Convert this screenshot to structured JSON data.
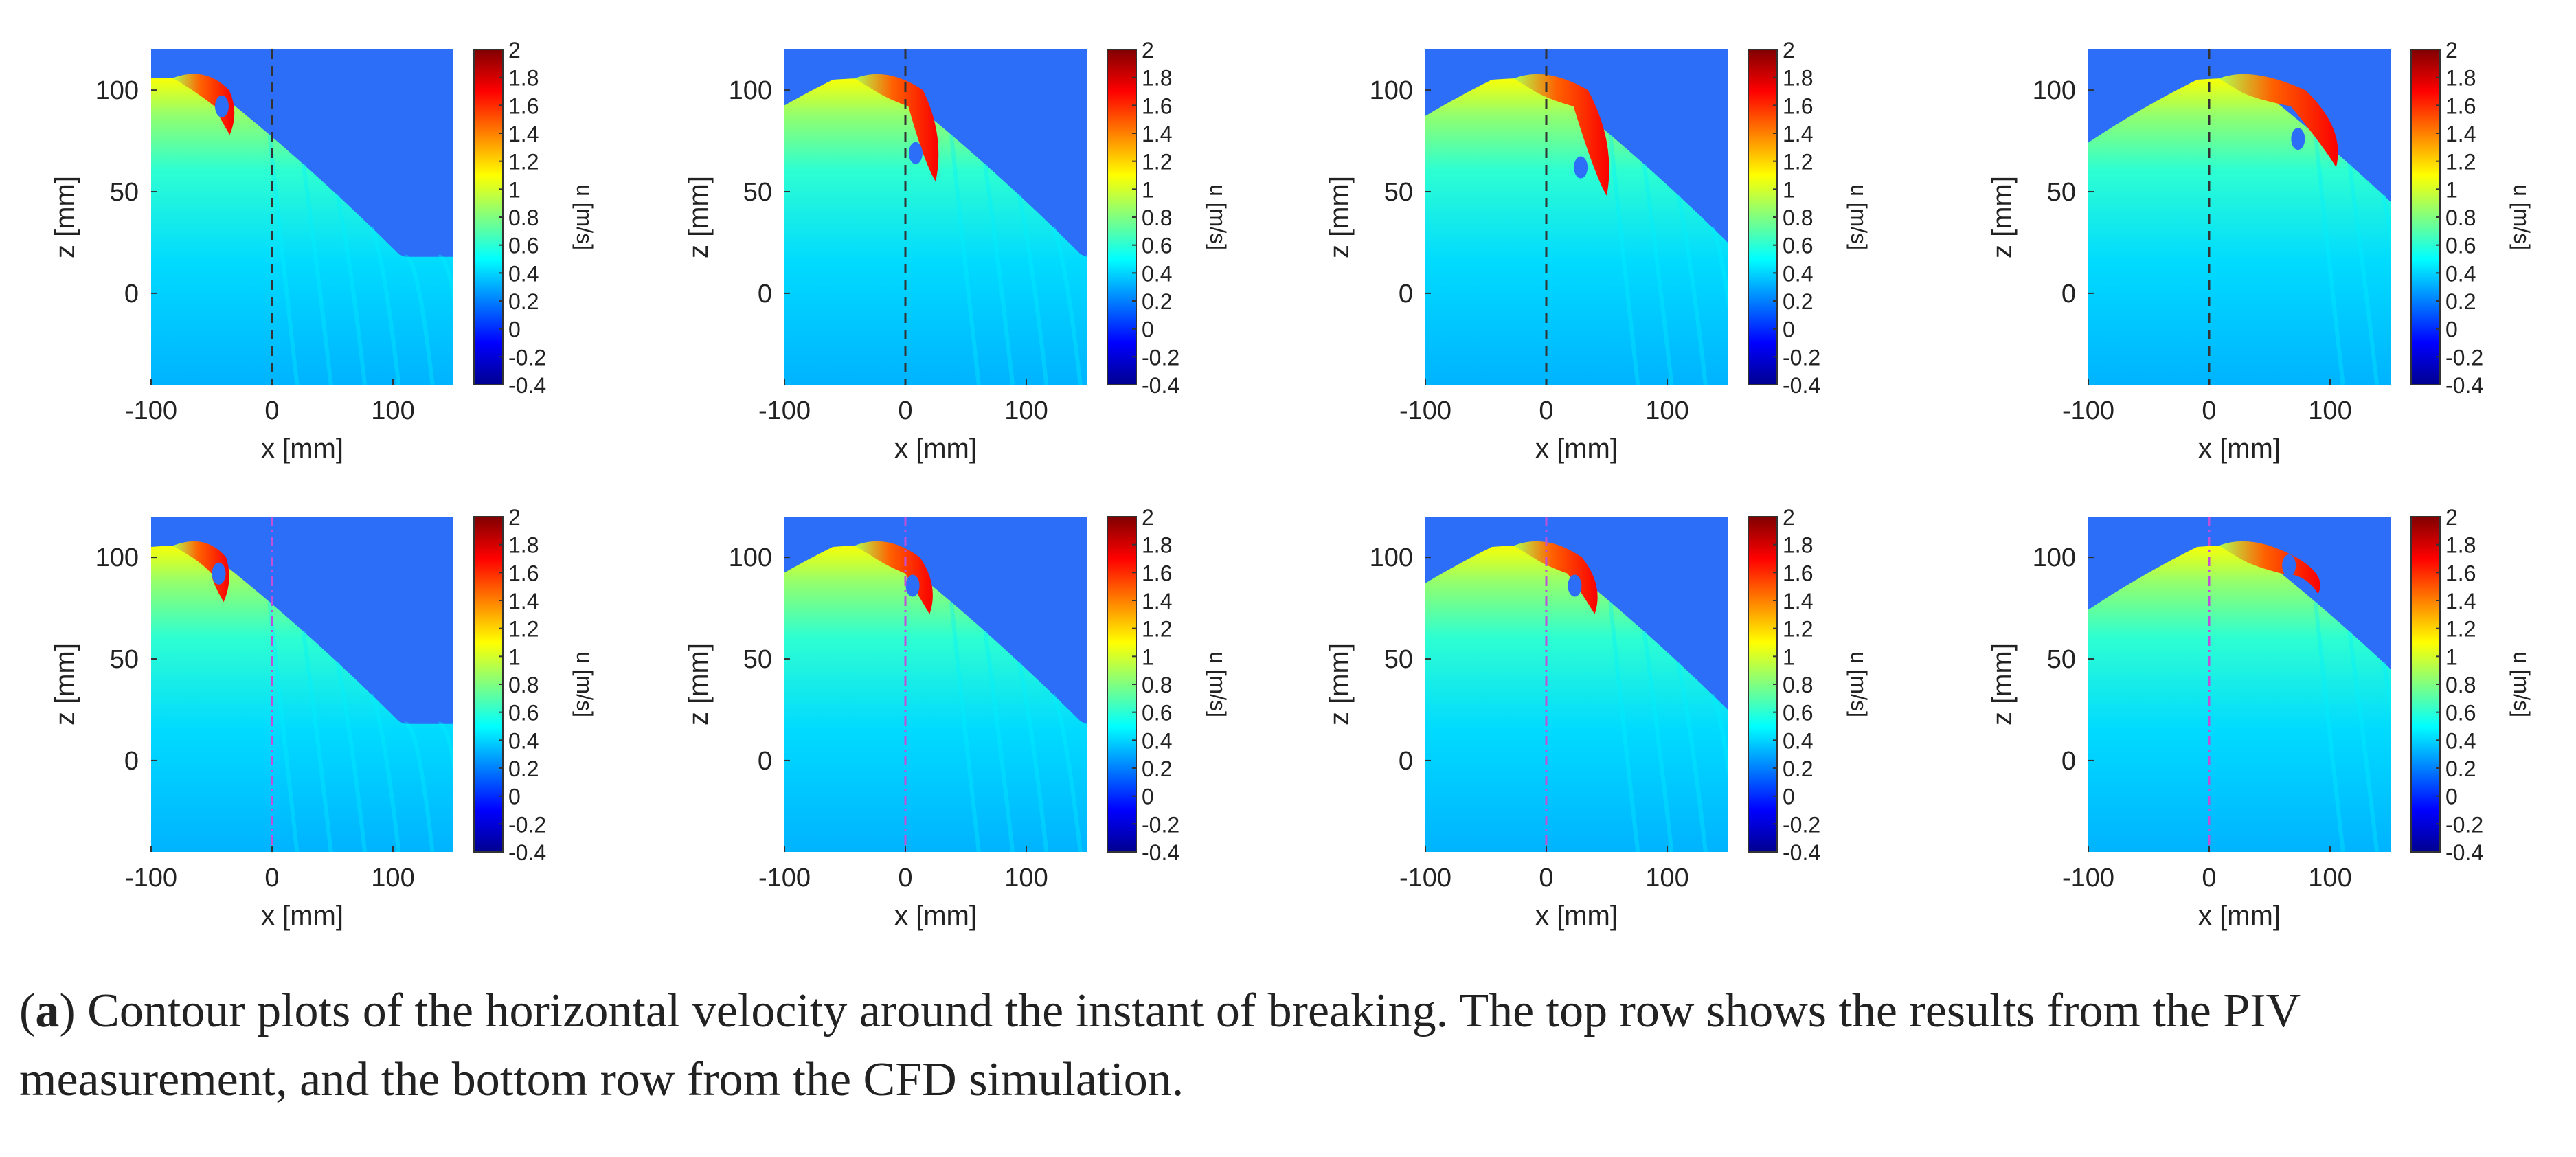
{
  "figure": {
    "caption_label": "a",
    "caption_text": "Contour plots of the horizontal velocity around the instant of breaking. The top row shows the results from the PIV measurement, and the bottom row from the CFD simulation."
  },
  "colors": {
    "air": "#2c6ef8",
    "colormap": [
      "#00008f",
      "#0000ff",
      "#0080ff",
      "#00ffff",
      "#80ff80",
      "#ffff00",
      "#ff8000",
      "#ff0000",
      "#800000"
    ],
    "piv_marker_line": "#333333",
    "cfd_marker_line": "#c050d8"
  },
  "chart_data": [
    {
      "type": "heatmap",
      "row": "PIV",
      "panel": 1,
      "crest_x": -60,
      "tongue_tip": [
        -35,
        78
      ],
      "xlabel": "x [mm]",
      "ylabel": "z [mm]",
      "xticks": [
        "-100",
        "0",
        "100"
      ],
      "yticks": [
        "100",
        "50",
        "0"
      ],
      "xlim": [
        -100,
        150
      ],
      "ylim": [
        -45,
        120
      ],
      "marker_x": 0,
      "colorbar": {
        "label": "u [m/s]",
        "ticks": [
          "2",
          "1.8",
          "1.6",
          "1.4",
          "1.2",
          "1",
          "0.8",
          "0.6",
          "0.4",
          "0.2",
          "0",
          "-0.2",
          "-0.4"
        ],
        "range": [
          -0.4,
          2
        ]
      }
    },
    {
      "type": "heatmap",
      "row": "PIV",
      "panel": 2,
      "crest_x": -20,
      "tongue_tip": [
        25,
        55
      ],
      "xlabel": "x [mm]",
      "ylabel": "z [mm]",
      "xticks": [
        "-100",
        "0",
        "100"
      ],
      "yticks": [
        "100",
        "50",
        "0"
      ],
      "xlim": [
        -100,
        150
      ],
      "ylim": [
        -45,
        120
      ],
      "marker_x": 0,
      "colorbar": {
        "label": "u [m/s]",
        "ticks": [
          "2",
          "1.8",
          "1.6",
          "1.4",
          "1.2",
          "1",
          "0.8",
          "0.6",
          "0.4",
          "0.2",
          "0",
          "-0.2",
          "-0.4"
        ],
        "range": [
          -0.4,
          2
        ]
      }
    },
    {
      "type": "heatmap",
      "row": "PIV",
      "panel": 3,
      "crest_x": -5,
      "tongue_tip": [
        50,
        48
      ],
      "xlabel": "x [mm]",
      "ylabel": "z [mm]",
      "xticks": [
        "-100",
        "0",
        "100"
      ],
      "yticks": [
        "100",
        "50",
        "0"
      ],
      "xlim": [
        -100,
        150
      ],
      "ylim": [
        -45,
        120
      ],
      "marker_x": 0,
      "colorbar": {
        "label": "u [m/s]",
        "ticks": [
          "2",
          "1.8",
          "1.6",
          "1.4",
          "1.2",
          "1",
          "0.8",
          "0.6",
          "0.4",
          "0.2",
          "0",
          "-0.2",
          "-0.4"
        ],
        "range": [
          -0.4,
          2
        ]
      }
    },
    {
      "type": "heatmap",
      "row": "PIV",
      "panel": 4,
      "crest_x": 30,
      "tongue_tip": [
        105,
        62
      ],
      "xlabel": "x [mm]",
      "ylabel": "z [mm]",
      "xticks": [
        "-100",
        "0",
        "100"
      ],
      "yticks": [
        "100",
        "50",
        "0"
      ],
      "xlim": [
        -100,
        150
      ],
      "ylim": [
        -45,
        120
      ],
      "marker_x": 0,
      "colorbar": {
        "label": "u [m/s]",
        "ticks": [
          "2",
          "1.8",
          "1.6",
          "1.4",
          "1.2",
          "1",
          "0.8",
          "0.6",
          "0.4",
          "0.2",
          "0",
          "-0.2",
          "-0.4"
        ],
        "range": [
          -0.4,
          2
        ]
      }
    },
    {
      "type": "heatmap",
      "row": "CFD",
      "panel": 5,
      "crest_x": -60,
      "tongue_tip": [
        -40,
        78
      ],
      "xlabel": "x [mm]",
      "ylabel": "z [mm]",
      "xticks": [
        "-100",
        "0",
        "100"
      ],
      "yticks": [
        "100",
        "50",
        "0"
      ],
      "xlim": [
        -100,
        150
      ],
      "ylim": [
        -45,
        120
      ],
      "marker_x": 0,
      "colorbar": {
        "label": "u [m/s]",
        "ticks": [
          "2",
          "1.8",
          "1.6",
          "1.4",
          "1.2",
          "1",
          "0.8",
          "0.6",
          "0.4",
          "0.2",
          "0",
          "-0.2",
          "-0.4"
        ],
        "range": [
          -0.4,
          2
        ]
      }
    },
    {
      "type": "heatmap",
      "row": "CFD",
      "panel": 6,
      "crest_x": -20,
      "tongue_tip": [
        20,
        72
      ],
      "xlabel": "x [mm]",
      "ylabel": "z [mm]",
      "xticks": [
        "-100",
        "0",
        "100"
      ],
      "yticks": [
        "100",
        "50",
        "0"
      ],
      "xlim": [
        -100,
        150
      ],
      "ylim": [
        -45,
        120
      ],
      "marker_x": 0,
      "colorbar": {
        "label": "u [m/s]",
        "ticks": [
          "2",
          "1.8",
          "1.6",
          "1.4",
          "1.2",
          "1",
          "0.8",
          "0.6",
          "0.4",
          "0.2",
          "0",
          "-0.2",
          "-0.4"
        ],
        "range": [
          -0.4,
          2
        ]
      }
    },
    {
      "type": "heatmap",
      "row": "CFD",
      "panel": 7,
      "crest_x": -5,
      "tongue_tip": [
        40,
        72
      ],
      "xlabel": "x [mm]",
      "ylabel": "z [mm]",
      "xticks": [
        "-100",
        "0",
        "100"
      ],
      "yticks": [
        "100",
        "50",
        "0"
      ],
      "xlim": [
        -100,
        150
      ],
      "ylim": [
        -45,
        120
      ],
      "marker_x": 0,
      "colorbar": {
        "label": "u [m/s]",
        "ticks": [
          "2",
          "1.8",
          "1.6",
          "1.4",
          "1.2",
          "1",
          "0.8",
          "0.6",
          "0.4",
          "0.2",
          "0",
          "-0.2",
          "-0.4"
        ],
        "range": [
          -0.4,
          2
        ]
      }
    },
    {
      "type": "heatmap",
      "row": "CFD",
      "panel": 8,
      "crest_x": 30,
      "tongue_tip": [
        90,
        82
      ],
      "xlabel": "x [mm]",
      "ylabel": "z [mm]",
      "xticks": [
        "-100",
        "0",
        "100"
      ],
      "yticks": [
        "100",
        "50",
        "0"
      ],
      "xlim": [
        -100,
        150
      ],
      "ylim": [
        -45,
        120
      ],
      "marker_x": 0,
      "colorbar": {
        "label": "u [m/s]",
        "ticks": [
          "2",
          "1.8",
          "1.6",
          "1.4",
          "1.2",
          "1",
          "0.8",
          "0.6",
          "0.4",
          "0.2",
          "0",
          "-0.2",
          "-0.4"
        ],
        "range": [
          -0.4,
          2
        ]
      }
    }
  ]
}
